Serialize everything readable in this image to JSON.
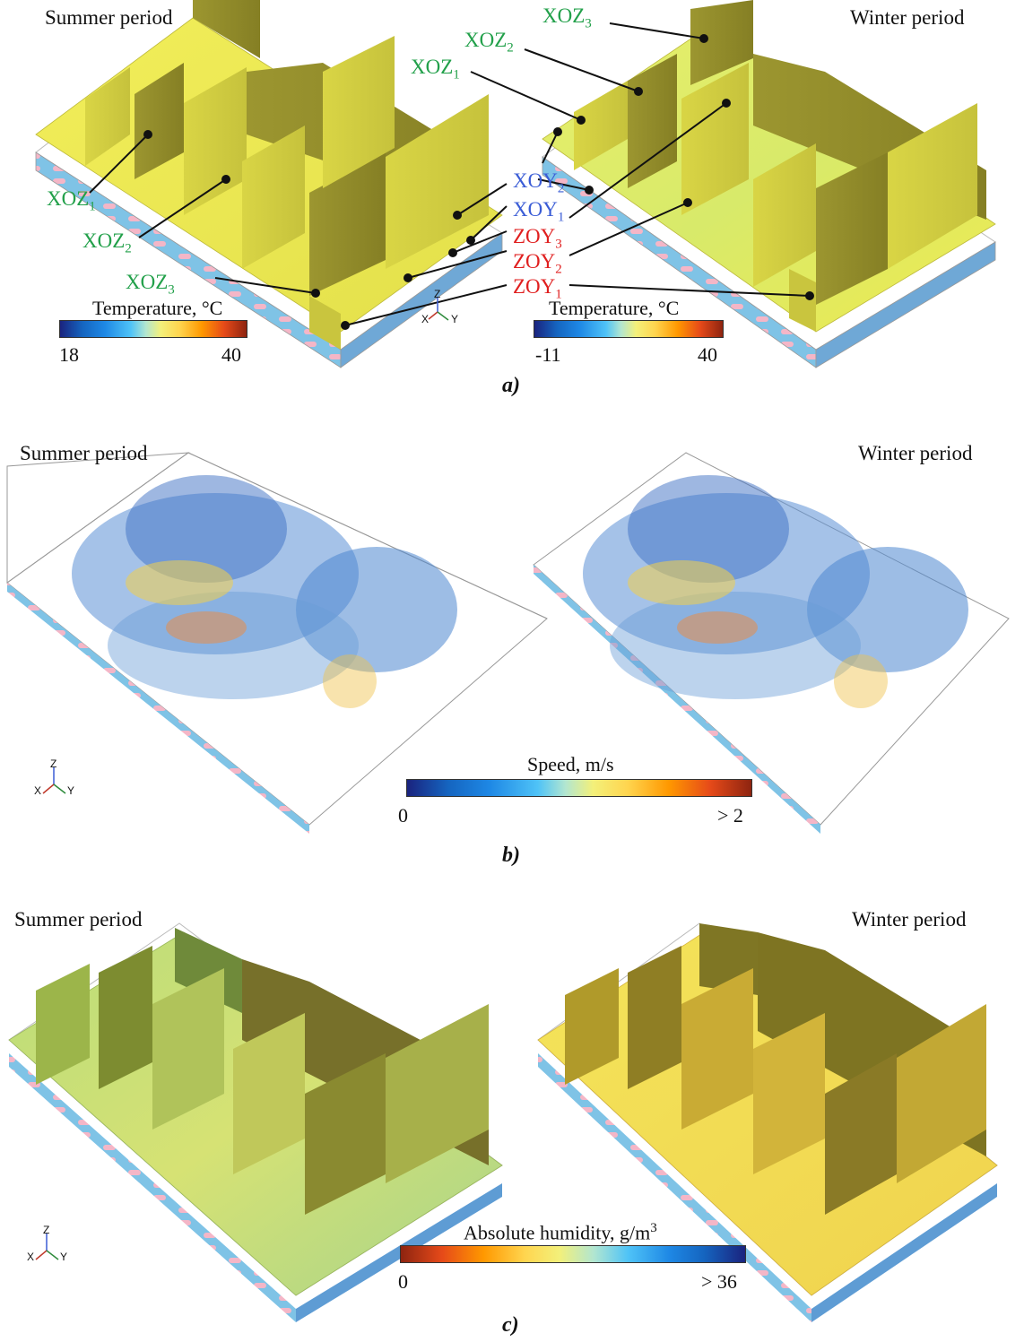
{
  "panel_a": {
    "summer_title": "Summer period",
    "winter_title": "Winter period",
    "caption": "a)",
    "colorbar_left": {
      "label": "Temperature,  °C",
      "min": "18",
      "max": "40"
    },
    "colorbar_right": {
      "label": "Temperature,  °C",
      "min": "-11",
      "max": "40"
    },
    "plane_labels": {
      "xoz": "XOZ",
      "xoy": "XOY",
      "zoy": "ZOY",
      "sub1": "1",
      "sub2": "2",
      "sub3": "3"
    }
  },
  "panel_b": {
    "summer_title": "Summer period",
    "winter_title": "Winter period",
    "caption": "b)",
    "colorbar": {
      "label": "Speed, m/s",
      "min": "0",
      "max": "> 2"
    }
  },
  "panel_c": {
    "summer_title": "Summer period",
    "winter_title": "Winter period",
    "caption": "c)",
    "colorbar": {
      "label": "Absolute humidity, g/m",
      "label_sup": "3",
      "min": "0",
      "max": "> 36"
    }
  },
  "axis_triad": {
    "x": "X",
    "y": "Y",
    "z": "Z"
  },
  "colors": {
    "label_green": "#22a04a",
    "label_blue": "#3a5cd6",
    "label_red": "#e01f1f",
    "plane_yellow": "#e9e74a",
    "plane_olive": "#8f8a2a"
  }
}
